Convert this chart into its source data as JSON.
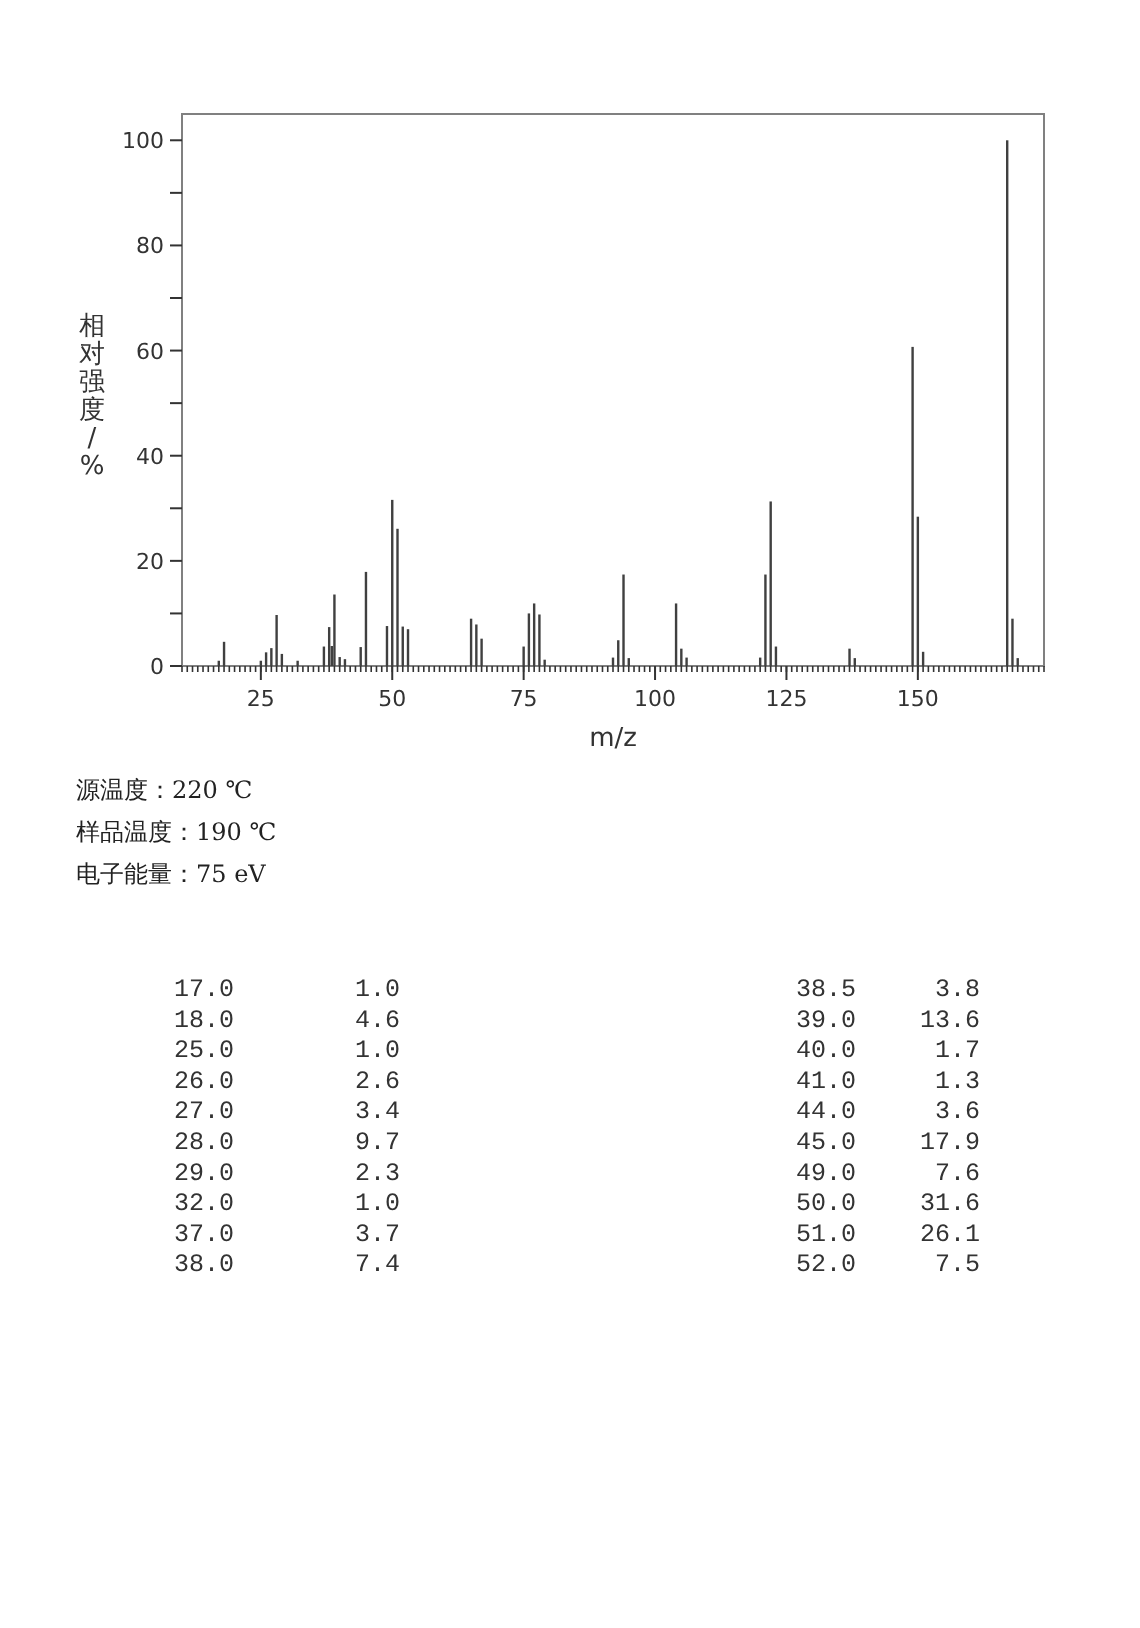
{
  "chart_data": {
    "type": "bar",
    "xlabel": "m/z",
    "ylabel": "相对强度/%",
    "x": [
      17,
      18,
      25,
      26,
      27,
      28,
      29,
      32,
      37,
      38,
      38.5,
      39,
      40,
      41,
      44,
      45,
      49,
      50,
      51,
      52,
      53,
      65,
      66,
      67,
      75,
      76,
      77,
      78,
      79,
      92,
      93,
      94,
      95,
      104,
      105,
      106,
      120,
      121,
      122,
      123,
      137,
      138,
      149,
      150,
      151,
      167,
      168,
      169
    ],
    "series": [
      {
        "color": "#404040",
        "values": [
          1.0,
          4.6,
          1.0,
          2.6,
          3.4,
          9.7,
          2.3,
          1.0,
          3.7,
          7.4,
          3.8,
          13.6,
          1.7,
          1.3,
          3.6,
          17.9,
          7.6,
          31.6,
          26.1,
          7.5,
          7.0,
          9.0,
          7.9,
          5.2,
          3.7,
          10.0,
          11.9,
          9.8,
          1.2,
          1.6,
          4.9,
          17.4,
          1.5,
          11.9,
          3.3,
          1.6,
          1.6,
          17.4,
          31.3,
          3.7,
          3.3,
          1.5,
          60.7,
          28.4,
          2.7,
          100,
          9.0,
          1.5
        ]
      }
    ],
    "xlim": [
      10,
      174
    ],
    "xticks": [
      25,
      50,
      75,
      100,
      125,
      150
    ],
    "ylim": [
      0,
      105
    ],
    "yticks": [
      0,
      {
        "value": 10,
        "label": null
      },
      20,
      {
        "value": 30,
        "label": null
      },
      40,
      {
        "value": 50,
        "label": null
      },
      60,
      {
        "value": 70,
        "label": null
      },
      80,
      {
        "value": 90,
        "label": null
      },
      100
    ],
    "annotations": [
      "源温度：220 ℃",
      "样品温度：190 ℃",
      "电子能量：75 eV",
      "17.0 1.0",
      "18.0 4.6",
      "25.0 1.0",
      "26.0 2.6",
      "27.0 3.4",
      "28.0 9.7",
      "29.0 2.3",
      "32.0 1.0",
      "37.0 3.7",
      "38.0 7.4",
      "38.5 3.8",
      "39.0 13.6",
      "40.0 1.7",
      "41.0 1.3",
      "44.0 3.6",
      "45.0 17.9",
      "49.0 7.6",
      "50.0 31.6",
      "51.0 26.1",
      "52.0 7.5"
    ]
  }
}
